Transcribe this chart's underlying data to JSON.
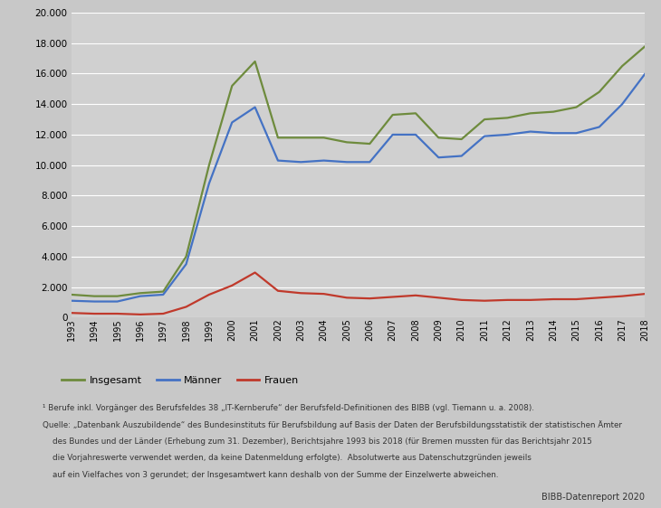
{
  "years": [
    1993,
    1994,
    1995,
    1996,
    1997,
    1998,
    1999,
    2000,
    2001,
    2002,
    2003,
    2004,
    2005,
    2006,
    2007,
    2008,
    2009,
    2010,
    2011,
    2012,
    2013,
    2014,
    2015,
    2016,
    2017,
    2018
  ],
  "insgesamt": [
    1500,
    1400,
    1400,
    1600,
    1700,
    4000,
    10000,
    15200,
    16800,
    11800,
    11800,
    11800,
    11500,
    11400,
    13300,
    13400,
    11800,
    11700,
    13000,
    13100,
    13400,
    13500,
    13800,
    14800,
    16500,
    17800
  ],
  "maenner": [
    1100,
    1050,
    1050,
    1400,
    1500,
    3500,
    8800,
    12800,
    13800,
    10300,
    10200,
    10300,
    10200,
    10200,
    12000,
    12000,
    10500,
    10600,
    11900,
    12000,
    12200,
    12100,
    12100,
    12500,
    14000,
    16000
  ],
  "frauen": [
    300,
    250,
    250,
    200,
    250,
    700,
    1500,
    2100,
    2950,
    1750,
    1600,
    1550,
    1300,
    1250,
    1350,
    1450,
    1300,
    1150,
    1100,
    1150,
    1150,
    1200,
    1200,
    1300,
    1400,
    1550
  ],
  "color_insgesamt": "#6e8b3d",
  "color_maenner": "#4472c4",
  "color_frauen": "#c0392b",
  "background_color": "#c8c8c8",
  "plot_bg_color": "#d0d0d0",
  "ylim": [
    0,
    20000
  ],
  "yticks": [
    0,
    2000,
    4000,
    6000,
    8000,
    10000,
    12000,
    14000,
    16000,
    18000,
    20000
  ],
  "legend_insgesamt": "Insgesamt",
  "legend_maenner": "Männer",
  "legend_frauen": "Frauen",
  "footnote1": "¹ Berufe inkl. Vorgänger des Berufsfeldes 38 „IT-Kernberufe“ der Berufsfeld-Definitionen des BIBB (vgl. Tiemann u. a. 2008).",
  "footnote2": "Quelle: „Datenbank Auszubildende“ des Bundesinstituts für Berufsbildung auf Basis der Daten der Berufsbildungsstatistik der statistischen Ämter",
  "footnote3": "    des Bundes und der Länder (Erhebung zum 31. Dezember), Berichtsjahre 1993 bis 2018 (für Bremen mussten für das Berichtsjahr 2015",
  "footnote4": "    die Vorjahreswerte verwendet werden, da keine Datenmeldung erfolgte).  Absolutwerte aus Datenschutzgründen jeweils",
  "footnote5": "    auf ein Vielfaches von 3 gerundet; der Insgesamtwert kann deshalb von der Summe der Einzelwerte abweichen.",
  "bibb_label": "BIBB-Datenreport 2020"
}
